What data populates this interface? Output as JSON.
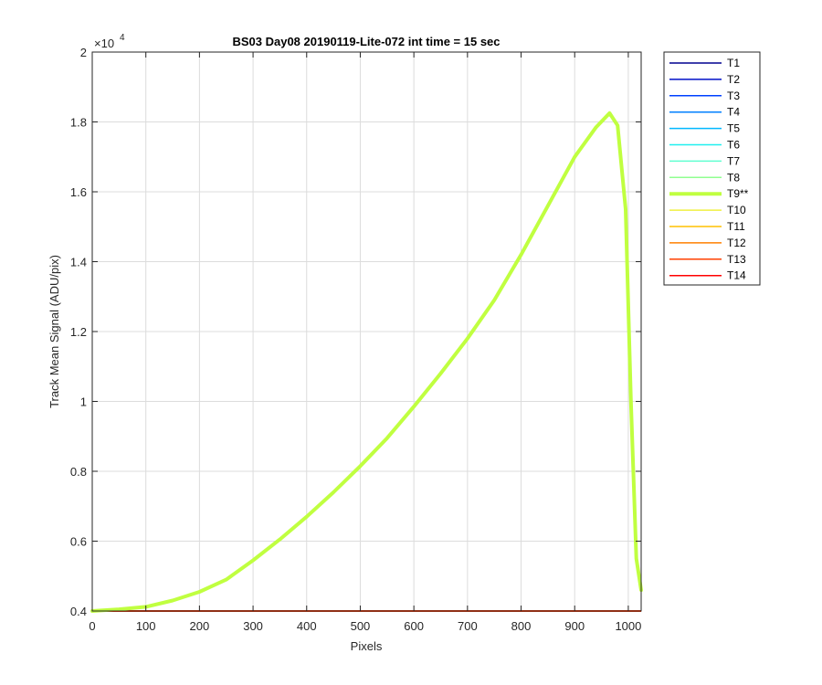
{
  "chart_data": {
    "type": "line",
    "title": "BS03 Day08 20190119-Lite-072 int time = 15 sec",
    "xlabel": "Pixels",
    "ylabel": "Track Mean Signal (ADU/pix)",
    "xlim": [
      0,
      1024
    ],
    "ylim": [
      0.4,
      2.0
    ],
    "y_exponent_label": "×10",
    "y_exponent_power": "4",
    "xticks": [
      0,
      100,
      200,
      300,
      400,
      500,
      600,
      700,
      800,
      900,
      1000
    ],
    "yticks": [
      0.4,
      0.6,
      0.8,
      1.0,
      1.2,
      1.4,
      1.6,
      1.8,
      2.0
    ],
    "ytick_labels": [
      "0.4",
      "0.6",
      "0.8",
      "1",
      "1.2",
      "1.4",
      "1.6",
      "1.8",
      "2"
    ],
    "grid": true,
    "legend_position": "outside-right-top",
    "series": [
      {
        "name": "T1",
        "color": "#00008f",
        "thick": false
      },
      {
        "name": "T2",
        "color": "#0010c8",
        "thick": false
      },
      {
        "name": "T3",
        "color": "#0040ff",
        "thick": false
      },
      {
        "name": "T4",
        "color": "#0080ff",
        "thick": false
      },
      {
        "name": "T5",
        "color": "#00b8ff",
        "thick": false
      },
      {
        "name": "T6",
        "color": "#20f0f0",
        "thick": false
      },
      {
        "name": "T7",
        "color": "#60ffd0",
        "thick": false
      },
      {
        "name": "T8",
        "color": "#90ff90",
        "thick": false
      },
      {
        "name": "T9**",
        "color": "#c0ff40",
        "thick": true,
        "x": [
          0,
          50,
          100,
          150,
          200,
          250,
          300,
          350,
          400,
          450,
          500,
          550,
          600,
          650,
          700,
          750,
          800,
          850,
          900,
          940,
          965,
          980,
          995,
          1005,
          1015,
          1024
        ],
        "y": [
          0.4,
          0.405,
          0.412,
          0.43,
          0.455,
          0.49,
          0.545,
          0.605,
          0.67,
          0.74,
          0.815,
          0.895,
          0.985,
          1.08,
          1.18,
          1.29,
          1.42,
          1.56,
          1.7,
          1.785,
          1.825,
          1.79,
          1.55,
          1.0,
          0.55,
          0.46
        ]
      },
      {
        "name": "T10",
        "color": "#f0f040",
        "thick": false
      },
      {
        "name": "T11",
        "color": "#ffc000",
        "thick": false
      },
      {
        "name": "T12",
        "color": "#ff8000",
        "thick": false
      },
      {
        "name": "T13",
        "color": "#ff4000",
        "thick": false
      },
      {
        "name": "T14",
        "color": "#ff0000",
        "thick": false
      }
    ],
    "baseline_value": 0.4
  }
}
